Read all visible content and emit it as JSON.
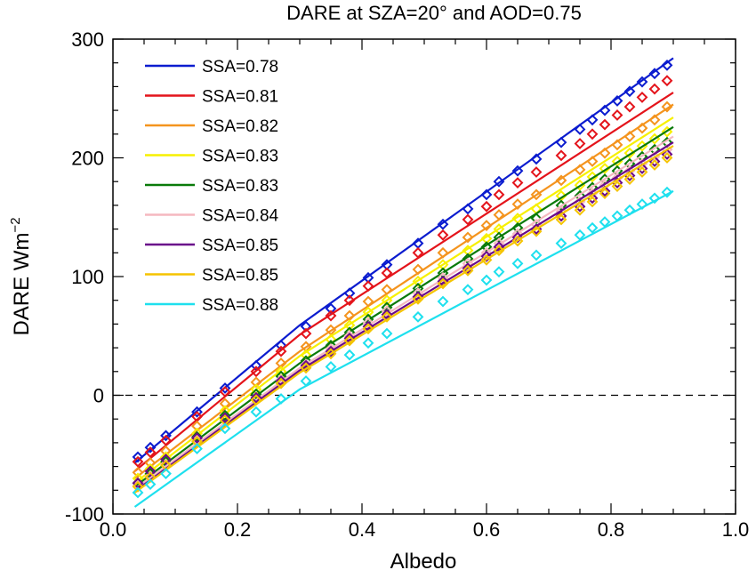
{
  "chart_data": {
    "type": "line",
    "title": "DARE at SZA=20° and AOD=0.75",
    "xlabel": "Albedo",
    "ylabel": "DARE Wm",
    "ylabel_sup": "−2",
    "xlim": [
      0.0,
      1.0
    ],
    "ylim": [
      -100,
      300
    ],
    "xticks": [
      "0.0",
      "0.2",
      "0.4",
      "0.6",
      "0.8",
      "1.0"
    ],
    "yticks": [
      "-100",
      "0",
      "100",
      "200",
      "300"
    ],
    "xtick_values": [
      0.0,
      0.2,
      0.4,
      0.6,
      0.8,
      1.0
    ],
    "ytick_values": [
      -100,
      0,
      100,
      200,
      300
    ],
    "zero_line": true,
    "legend_position": "top-left",
    "marker": "diamond",
    "marker_x": [
      0.04,
      0.06,
      0.085,
      0.135,
      0.18,
      0.23,
      0.27,
      0.31,
      0.35,
      0.38,
      0.41,
      0.44,
      0.49,
      0.53,
      0.57,
      0.6,
      0.62,
      0.65,
      0.68,
      0.72,
      0.75,
      0.77,
      0.79,
      0.81,
      0.83,
      0.85,
      0.87,
      0.89
    ],
    "series": [
      {
        "name": "SSA=0.78",
        "color": "#0b1ccf",
        "line": [
          [
            0.035,
            -57
          ],
          [
            0.3,
            59
          ],
          [
            0.9,
            284
          ]
        ],
        "markers": [
          -52,
          -44,
          -34,
          -14,
          6,
          25,
          42,
          58,
          73,
          86,
          99,
          110,
          128,
          144,
          157,
          169,
          180,
          189,
          199,
          213,
          224,
          232,
          240,
          248,
          256,
          264,
          271,
          278
        ]
      },
      {
        "name": "SSA=0.81",
        "color": "#e4141b",
        "line": [
          [
            0.035,
            -64
          ],
          [
            0.3,
            51
          ],
          [
            0.9,
            255
          ]
        ],
        "markers": [
          -56,
          -48,
          -38,
          -18,
          3,
          20,
          37,
          52,
          67,
          80,
          92,
          103,
          120,
          135,
          148,
          159,
          169,
          179,
          188,
          202,
          212,
          220,
          228,
          236,
          243,
          251,
          258,
          265
        ]
      },
      {
        "name": "SSA=0.82",
        "color": "#f4941e",
        "line": [
          [
            0.035,
            -70
          ],
          [
            0.3,
            37
          ],
          [
            0.9,
            245
          ]
        ],
        "markers": [
          -65,
          -57,
          -47,
          -26,
          -7,
          11,
          27,
          41,
          55,
          67,
          79,
          89,
          106,
          120,
          133,
          143,
          152,
          161,
          169,
          181,
          190,
          197,
          204,
          211,
          218,
          225,
          232,
          243
        ]
      },
      {
        "name": "SSA=0.83",
        "color": "#f7f000",
        "line": [
          [
            0.035,
            -74
          ],
          [
            0.3,
            33
          ],
          [
            0.9,
            234
          ]
        ],
        "markers": [
          -70,
          -62,
          -52,
          -32,
          -13,
          5,
          20,
          34,
          47,
          59,
          70,
          80,
          96,
          110,
          122,
          132,
          140,
          149,
          157,
          168,
          177,
          184,
          191,
          197,
          204,
          210,
          216,
          222
        ]
      },
      {
        "name": "SSA=0.83",
        "color": "#0a7a0a",
        "line": [
          [
            0.035,
            -77
          ],
          [
            0.3,
            27
          ],
          [
            0.9,
            226
          ]
        ],
        "markers": [
          -74,
          -66,
          -56,
          -35,
          -17,
          1,
          16,
          29,
          42,
          53,
          64,
          74,
          90,
          103,
          115,
          125,
          133,
          141,
          149,
          160,
          168,
          175,
          182,
          189,
          195,
          201,
          207,
          213
        ]
      },
      {
        "name": "SSA=0.84",
        "color": "#f5b8c0",
        "line": [
          [
            0.035,
            -79
          ],
          [
            0.3,
            23
          ],
          [
            0.9,
            218
          ]
        ],
        "markers": [
          -76,
          -68,
          -58,
          -38,
          -19,
          -2,
          13,
          26,
          39,
          50,
          61,
          71,
          86,
          99,
          111,
          120,
          128,
          136,
          144,
          155,
          163,
          170,
          177,
          183,
          189,
          195,
          201,
          207
        ]
      },
      {
        "name": "SSA=0.85",
        "color": "#6a0a8a",
        "line": [
          [
            0.035,
            -81
          ],
          [
            0.3,
            21
          ],
          [
            0.9,
            213
          ]
        ],
        "markers": [
          -74,
          -64,
          -54,
          -36,
          -19,
          -2,
          12,
          25,
          37,
          48,
          58,
          68,
          83,
          96,
          107,
          117,
          125,
          133,
          140,
          151,
          159,
          166,
          172,
          179,
          185,
          191,
          197,
          203
        ]
      },
      {
        "name": "SSA=0.85",
        "color": "#f5c400",
        "line": [
          [
            0.035,
            -82
          ],
          [
            0.3,
            19
          ],
          [
            0.9,
            210
          ]
        ],
        "markers": [
          -77,
          -69,
          -59,
          -39,
          -21,
          -4,
          10,
          23,
          35,
          46,
          56,
          66,
          81,
          94,
          105,
          114,
          122,
          130,
          138,
          148,
          156,
          163,
          170,
          176,
          182,
          188,
          194,
          200
        ]
      },
      {
        "name": "SSA=0.88",
        "color": "#1ee0ee",
        "line": [
          [
            0.035,
            -94
          ],
          [
            0.3,
            5
          ],
          [
            0.9,
            172
          ]
        ],
        "markers": [
          -82,
          -75,
          -66,
          -45,
          -28,
          -14,
          -3,
          12,
          24,
          34,
          44,
          52,
          66,
          79,
          89,
          97,
          104,
          111,
          118,
          128,
          135,
          141,
          146,
          151,
          156,
          161,
          166,
          171
        ]
      }
    ]
  }
}
